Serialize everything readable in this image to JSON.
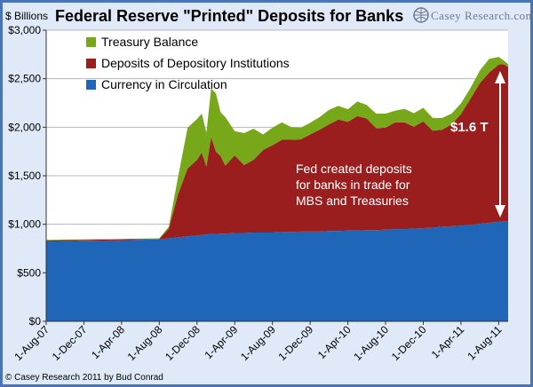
{
  "chart_data": {
    "type": "area",
    "title": "Federal  Reserve \"Printed\" Deposits for Banks",
    "unit_label": "$ Billions",
    "brand": "Casey Research.com",
    "credit": "© Casey Research 2011 by Bud Conrad",
    "ylim": [
      0,
      3000
    ],
    "yticks": [
      0,
      500,
      1000,
      1500,
      2000,
      2500,
      3000
    ],
    "ytick_labels": [
      "$0",
      "$500",
      "$1,000",
      "$1,500",
      "$2,000",
      "$2,500",
      "$3,000"
    ],
    "xticks": [
      0,
      4,
      8,
      12,
      16,
      20,
      24,
      28,
      32,
      36,
      40,
      44,
      48
    ],
    "xtick_labels": [
      "1-Aug-07",
      "1-Dec-07",
      "1-Apr-08",
      "1-Aug-08",
      "1-Dec-08",
      "1-Apr-09",
      "1-Aug-09",
      "1-Dec-09",
      "1-Apr-10",
      "1-Aug-10",
      "1-Dec-10",
      "1-Apr-11",
      "1-Aug-11"
    ],
    "xlim": [
      0,
      49
    ],
    "x": [
      0,
      4,
      8,
      12,
      13,
      14,
      15,
      16,
      16.5,
      17,
      17.5,
      18,
      18.5,
      19,
      20,
      21,
      22,
      23,
      24,
      25,
      26,
      27,
      28,
      29,
      30,
      31,
      32,
      33,
      34,
      35,
      36,
      37,
      38,
      39,
      40,
      41,
      42,
      43,
      44,
      45,
      46,
      47,
      48,
      48.5,
      49
    ],
    "series": [
      {
        "name": "Currency in Circulation",
        "color": "#1f66b8",
        "values": [
          820,
          830,
          835,
          845,
          855,
          865,
          875,
          885,
          890,
          895,
          900,
          900,
          905,
          905,
          910,
          910,
          915,
          915,
          915,
          920,
          920,
          925,
          925,
          925,
          930,
          930,
          935,
          935,
          940,
          940,
          945,
          950,
          950,
          955,
          960,
          965,
          975,
          980,
          985,
          995,
          1005,
          1015,
          1025,
          1030,
          1030
        ]
      },
      {
        "name": "Deposits of Depository Institutions",
        "color": "#9b1e1e",
        "values": [
          15,
          10,
          10,
          5,
          100,
          450,
          700,
          780,
          850,
          700,
          1000,
          850,
          800,
          700,
          800,
          700,
          750,
          850,
          900,
          950,
          950,
          950,
          1000,
          1050,
          1100,
          1150,
          1120,
          1180,
          1150,
          1050,
          1050,
          1100,
          1100,
          1050,
          1100,
          1000,
          1000,
          1050,
          1150,
          1300,
          1450,
          1550,
          1620,
          1620,
          1590
        ]
      },
      {
        "name": "Treasury Balance",
        "color": "#77a81a",
        "values": [
          5,
          5,
          5,
          5,
          20,
          180,
          420,
          420,
          400,
          350,
          500,
          600,
          450,
          500,
          250,
          330,
          320,
          160,
          180,
          180,
          130,
          120,
          120,
          130,
          150,
          140,
          130,
          150,
          140,
          150,
          145,
          120,
          140,
          140,
          140,
          130,
          120,
          110,
          110,
          110,
          130,
          140,
          80,
          40,
          30
        ]
      }
    ],
    "legend": [
      "Treasury Balance",
      "Deposits of Depository Institutions",
      "Currency in Circulation"
    ],
    "annotations": {
      "note_lines": [
        "Fed created deposits",
        "for banks in trade for",
        "MBS and Treasuries"
      ],
      "delta_label": "$1.6 T"
    }
  }
}
